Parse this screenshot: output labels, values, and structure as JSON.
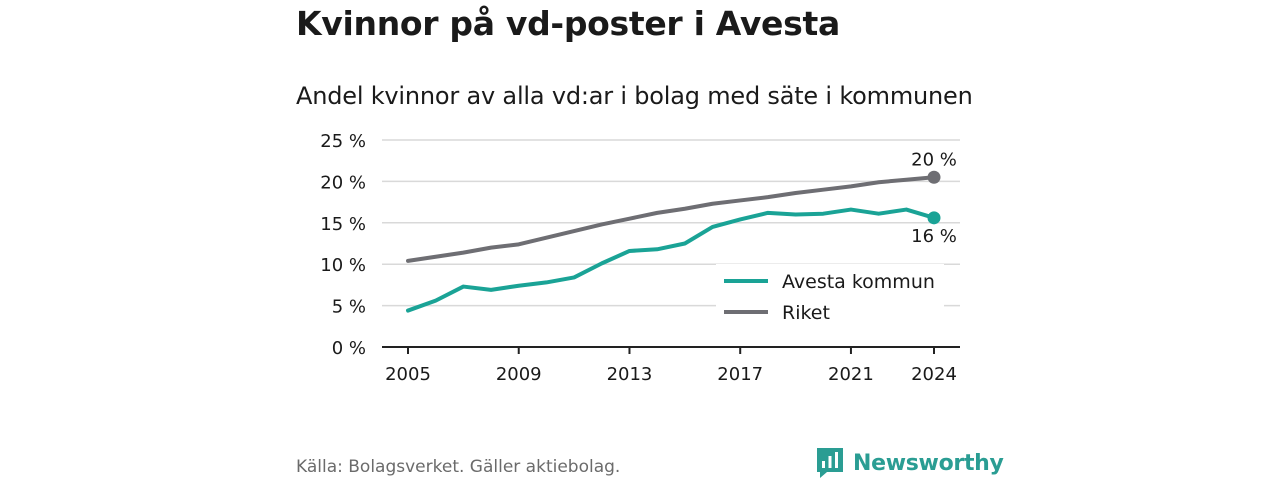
{
  "title": "Kvinnor på vd-poster i Avesta",
  "subtitle": "Andel kvinnor av alla vd:ar i bolag med säte i kommunen",
  "source": "Källa: Bolagsverket. Gäller aktiebolag.",
  "brand": "Newsworthy",
  "colors": {
    "avesta": "#1aa396",
    "riket": "#6e6e73",
    "grid": "#d9d9d9",
    "brand": "#2a9d93"
  },
  "chart_data": {
    "type": "line",
    "x": [
      2005,
      2006,
      2007,
      2008,
      2009,
      2010,
      2011,
      2012,
      2013,
      2014,
      2015,
      2016,
      2017,
      2018,
      2019,
      2020,
      2021,
      2022,
      2023,
      2024
    ],
    "x_ticks": [
      2005,
      2009,
      2013,
      2017,
      2021,
      2024
    ],
    "y_ticks": [
      0,
      5,
      10,
      15,
      20,
      25
    ],
    "y_tick_labels": [
      "0 %",
      "5 %",
      "10 %",
      "15 %",
      "20 %",
      "25 %"
    ],
    "ylim": [
      0,
      25
    ],
    "xlim": [
      2005,
      2024
    ],
    "grid": true,
    "legend_position": "bottom-right",
    "series": [
      {
        "name": "Avesta kommun",
        "color_key": "avesta",
        "end_label": "16 %",
        "values": [
          4.4,
          5.6,
          7.3,
          6.9,
          7.4,
          7.8,
          8.4,
          10.1,
          11.6,
          11.8,
          12.5,
          14.5,
          15.4,
          16.2,
          16.0,
          16.1,
          16.6,
          16.1,
          16.6,
          15.6
        ]
      },
      {
        "name": "Riket",
        "color_key": "riket",
        "end_label": "20 %",
        "values": [
          10.4,
          10.9,
          11.4,
          12.0,
          12.4,
          13.2,
          14.0,
          14.8,
          15.5,
          16.2,
          16.7,
          17.3,
          17.7,
          18.1,
          18.6,
          19.0,
          19.4,
          19.9,
          20.2,
          20.5
        ]
      }
    ]
  }
}
